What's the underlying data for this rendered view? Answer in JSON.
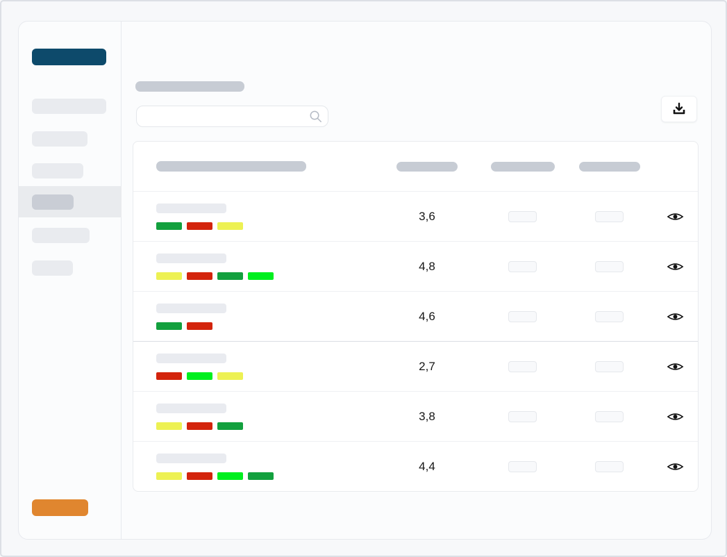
{
  "colors": {
    "navy": "#0d4a6b",
    "orange": "#e0862f",
    "tag_colors": {
      "green": "#13a03e",
      "red": "#d3240c",
      "yellow": "#edf153,",
      "bright_green": "#00ef1f"
    }
  },
  "sidebar": {
    "primary_button": {
      "icon": "primary-nav-placeholder"
    },
    "items_placeholder_count": 5,
    "selected_item_index": 3,
    "bottom_button": {
      "icon": "bottom-action-placeholder"
    }
  },
  "toolbar": {
    "search": {
      "value": "",
      "placeholder": ""
    },
    "icons": [
      "search-icon",
      "download-icon"
    ]
  },
  "table": {
    "header_placeholders": 4,
    "rows": [
      {
        "value": "3,6",
        "tags": [
          "green",
          "red",
          "yellow"
        ]
      },
      {
        "value": "4,8",
        "tags": [
          "yellow",
          "red",
          "green",
          "bright_green"
        ]
      },
      {
        "value": "4,6",
        "tags": [
          "green",
          "red"
        ]
      },
      {
        "value": "2,7",
        "tags": [
          "red",
          "bright_green",
          "yellow"
        ]
      },
      {
        "value": "3,8",
        "tags": [
          "yellow",
          "red",
          "green"
        ]
      },
      {
        "value": "4,4",
        "tags": [
          "yellow",
          "red",
          "bright_green",
          "green"
        ]
      }
    ],
    "row_action_icon": "eye-icon"
  }
}
